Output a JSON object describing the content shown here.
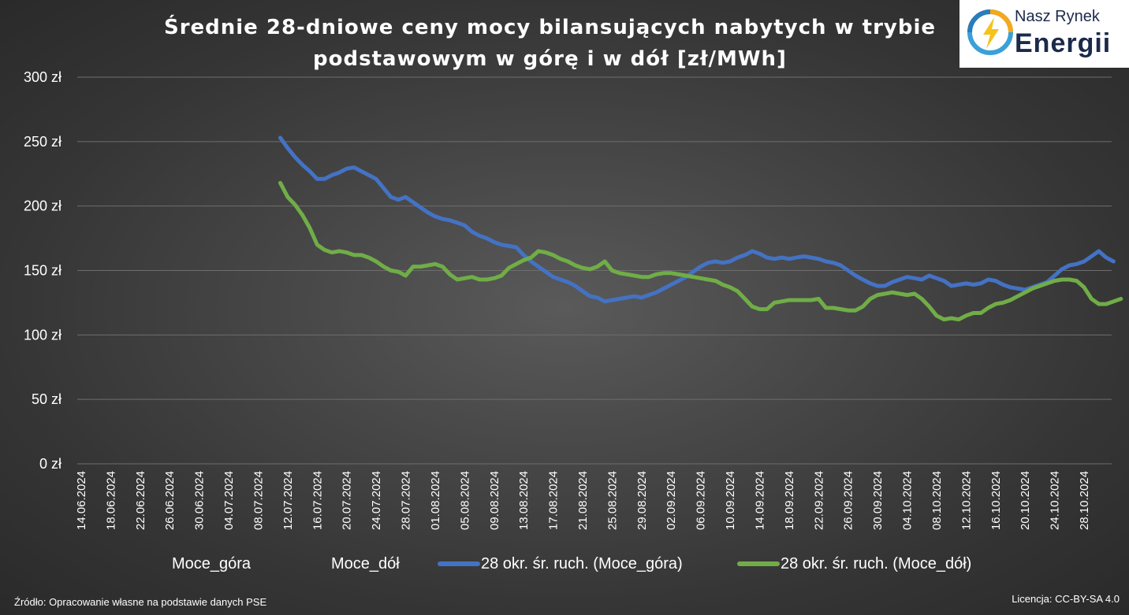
{
  "chart_data": {
    "type": "line",
    "title_line1": "Średnie 28-dniowe ceny mocy bilansujących nabytych w trybie",
    "title_line2": "podstawowym w górę i w dół [zł/MWh]",
    "y_ticks": [
      "300 zł",
      "250 zł",
      "200 zł",
      "150 zł",
      "100 zł",
      "50 zł",
      "0 zł"
    ],
    "ylim": [
      0,
      300
    ],
    "x_tick_labels": [
      "14.06.2024",
      "18.06.2024",
      "22.06.2024",
      "26.06.2024",
      "30.06.2024",
      "04.07.2024",
      "08.07.2024",
      "12.07.2024",
      "16.07.2024",
      "20.07.2024",
      "24.07.2024",
      "28.07.2024",
      "01.08.2024",
      "05.08.2024",
      "09.08.2024",
      "13.08.2024",
      "17.08.2024",
      "21.08.2024",
      "25.08.2024",
      "29.08.2024",
      "02.09.2024",
      "06.09.2024",
      "10.09.2024",
      "14.09.2024",
      "18.09.2024",
      "22.09.2024",
      "26.09.2024",
      "30.09.2024",
      "04.10.2024",
      "08.10.2024",
      "12.10.2024",
      "16.10.2024",
      "20.10.2024",
      "24.10.2024",
      "28.10.2024"
    ],
    "x_start_date": "2024-07-11",
    "grid": true,
    "legend_position": "bottom",
    "legend": [
      "Moce_góra",
      "Moce_dół",
      "28 okr. śr. ruch. (Moce_góra)",
      "28 okr. śr. ruch. (Moce_dół)"
    ],
    "series": [
      {
        "name": "28 okr. śr. ruch. (Moce_góra)",
        "color": "#4472c4",
        "values": [
          253,
          245,
          238,
          232,
          227,
          221,
          221,
          224,
          226,
          229,
          230,
          227,
          224,
          221,
          214,
          207,
          205,
          207,
          203,
          199,
          195,
          192,
          190,
          189,
          187,
          185,
          180,
          177,
          175,
          172,
          170,
          169,
          168,
          162,
          157,
          153,
          149,
          145,
          143,
          141,
          138,
          134,
          130,
          129,
          126,
          127,
          128,
          129,
          130,
          129,
          131,
          133,
          136,
          139,
          142,
          145,
          149,
          153,
          156,
          157,
          156,
          157,
          160,
          162,
          165,
          163,
          160,
          159,
          160,
          159,
          160,
          161,
          160,
          159,
          157,
          156,
          154,
          150,
          146,
          143,
          140,
          138,
          138,
          141,
          143,
          145,
          144,
          143,
          146,
          144,
          142,
          138,
          139,
          140,
          139,
          140,
          143,
          142,
          139,
          137,
          136,
          135,
          137,
          139,
          141,
          146,
          151,
          154,
          155,
          157,
          161,
          165,
          160,
          157
        ]
      },
      {
        "name": "28 okr. śr. ruch. (Moce_dół)",
        "color": "#70ad47",
        "values": [
          218,
          207,
          201,
          193,
          183,
          170,
          166,
          164,
          165,
          164,
          162,
          162,
          160,
          157,
          153,
          150,
          149,
          146,
          153,
          153,
          154,
          155,
          153,
          147,
          143,
          144,
          145,
          143,
          143,
          144,
          146,
          152,
          155,
          158,
          160,
          165,
          164,
          162,
          159,
          157,
          154,
          152,
          151,
          153,
          157,
          150,
          148,
          147,
          146,
          145,
          145,
          147,
          148,
          148,
          147,
          146,
          145,
          144,
          143,
          142,
          139,
          137,
          134,
          128,
          122,
          120,
          120,
          125,
          126,
          127,
          127,
          127,
          127,
          128,
          121,
          121,
          120,
          119,
          119,
          122,
          128,
          131,
          132,
          133,
          132,
          131,
          132,
          128,
          122,
          115,
          112,
          113,
          112,
          115,
          117,
          117,
          121,
          124,
          125,
          127,
          130,
          133,
          136,
          138,
          140,
          142,
          143,
          143,
          142,
          137,
          128,
          124,
          124,
          126,
          128
        ]
      }
    ]
  },
  "logo": {
    "top": "Nasz Rynek",
    "bottom": "Energii"
  },
  "footer": {
    "source": "Źródło: Opracowanie własne na podstawie danych PSE",
    "license": "Licencja: CC-BY-SA 4.0"
  }
}
